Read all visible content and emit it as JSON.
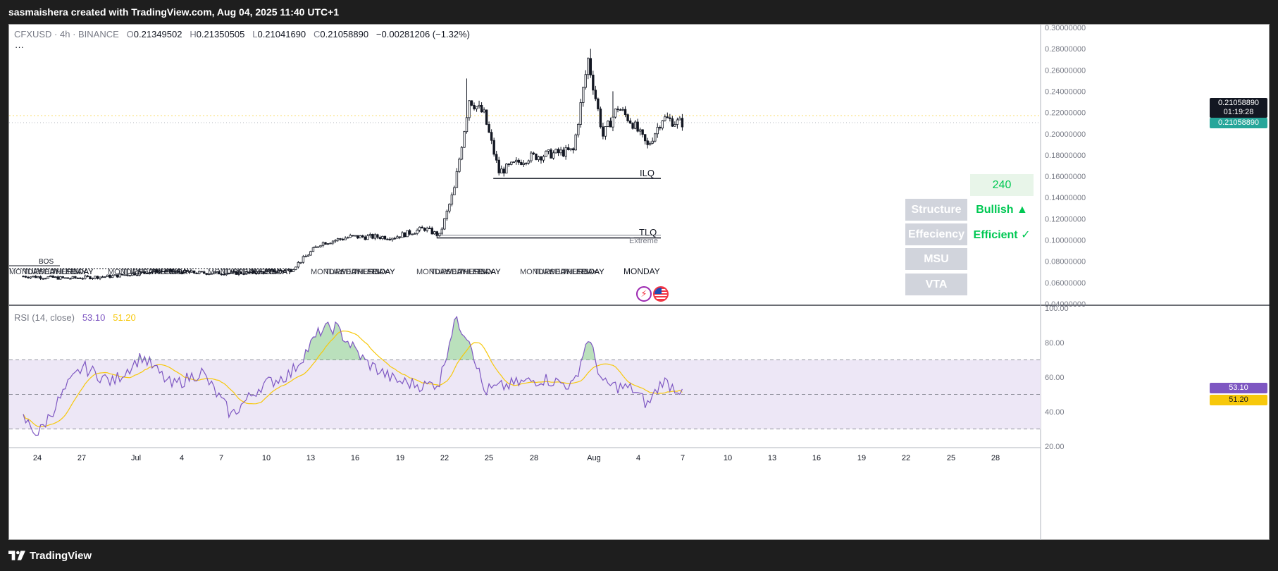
{
  "header": {
    "attribution": "sasmaishera created with TradingView.com, Aug 04, 2025 11:40 UTC+1"
  },
  "legend": {
    "symbol": "CFXUSD · 4h · BINANCE",
    "o_label": "O",
    "o": "0.21349502",
    "h_label": "H",
    "h": "0.21350505",
    "l_label": "L",
    "l": "0.21041690",
    "c_label": "C",
    "c": "0.21058890",
    "change": "−0.00281206 (−1.32%)",
    "more": "···"
  },
  "price_axis": {
    "ticks": [
      "0.30000000",
      "0.28000000",
      "0.26000000",
      "0.24000000",
      "0.22000000",
      "0.20000000",
      "0.18000000",
      "0.16000000",
      "0.14000000",
      "0.12000000",
      "0.10000000",
      "0.08000000",
      "0.06000000",
      "0.04000000"
    ],
    "last_price": "0.21058890",
    "countdown": "01:19:28",
    "indicator_price": "0.21058890"
  },
  "annotations": {
    "ilq": "ILQ",
    "tlq": "TLQ",
    "extreme": "Extreme",
    "bos": "BOS",
    "day_label": "MONDAY"
  },
  "table": {
    "timeframe": "240",
    "rows": [
      {
        "key": "Structure",
        "value": "Bullish ▲"
      },
      {
        "key": "Effeciency",
        "value": "Efficient ✓"
      },
      {
        "key": "MSU",
        "value": ""
      },
      {
        "key": "VTA",
        "value": ""
      }
    ]
  },
  "rsi": {
    "title": "RSI (14, close)",
    "rsi_value": "53.10",
    "ma_value": "51.20",
    "ticks": [
      "100.00",
      "80.00",
      "60.00",
      "40.00",
      "20.00"
    ]
  },
  "time_axis": {
    "ticks": [
      "24",
      "27",
      "Jul",
      "4",
      "7",
      "10",
      "13",
      "16",
      "19",
      "22",
      "25",
      "28",
      "Aug",
      "4",
      "7",
      "10",
      "13",
      "16",
      "19",
      "22",
      "25",
      "28"
    ]
  },
  "footer": {
    "brand": "TradingView"
  },
  "colors": {
    "up": "#ffffff",
    "down": "#131722",
    "rsi_line": "#7e57c2",
    "rsi_ma": "#f7c80b",
    "rsi_band": "#ede7f6",
    "label_price": "#131722",
    "label_indicator": "#26a69a",
    "bullish": "#00c853"
  },
  "chart_data": {
    "type": "candlestick",
    "symbol": "CFXUSD",
    "interval": "4h",
    "price_range": [
      0.04,
      0.3
    ],
    "key_levels": [
      {
        "name": "ILQ",
        "price": 0.158
      },
      {
        "name": "TLQ",
        "price": 0.102
      }
    ],
    "price_path": [
      {
        "date": "06-21",
        "price": 0.066
      },
      {
        "date": "06-24",
        "price": 0.064
      },
      {
        "date": "06-27",
        "price": 0.066
      },
      {
        "date": "06-30",
        "price": 0.071
      },
      {
        "date": "07-03",
        "price": 0.069
      },
      {
        "date": "07-06",
        "price": 0.069
      },
      {
        "date": "07-09",
        "price": 0.072
      },
      {
        "date": "07-11",
        "price": 0.097
      },
      {
        "date": "07-13",
        "price": 0.103
      },
      {
        "date": "07-16",
        "price": 0.103
      },
      {
        "date": "07-18",
        "price": 0.111
      },
      {
        "date": "07-19",
        "price": 0.104
      },
      {
        "date": "07-20",
        "price": 0.148
      },
      {
        "date": "07-21",
        "price": 0.233
      },
      {
        "date": "07-22",
        "price": 0.218
      },
      {
        "date": "07-23",
        "price": 0.164
      },
      {
        "date": "07-25",
        "price": 0.178
      },
      {
        "date": "07-28",
        "price": 0.184
      },
      {
        "date": "07-29",
        "price": 0.27
      },
      {
        "date": "07-30",
        "price": 0.198
      },
      {
        "date": "07-31",
        "price": 0.225
      },
      {
        "date": "08-01",
        "price": 0.21
      },
      {
        "date": "08-02",
        "price": 0.188
      },
      {
        "date": "08-03",
        "price": 0.215
      },
      {
        "date": "08-04",
        "price": 0.2106
      }
    ],
    "rsi_path": [
      {
        "date": "06-21",
        "value": 36
      },
      {
        "date": "06-22",
        "value": 27
      },
      {
        "date": "06-24",
        "value": 55
      },
      {
        "date": "06-25",
        "value": 66
      },
      {
        "date": "06-27",
        "value": 57
      },
      {
        "date": "06-29",
        "value": 72
      },
      {
        "date": "07-01",
        "value": 55
      },
      {
        "date": "07-03",
        "value": 63
      },
      {
        "date": "07-05",
        "value": 38
      },
      {
        "date": "07-07",
        "value": 55
      },
      {
        "date": "07-09",
        "value": 62
      },
      {
        "date": "07-11",
        "value": 87
      },
      {
        "date": "07-12",
        "value": 89
      },
      {
        "date": "07-14",
        "value": 69
      },
      {
        "date": "07-16",
        "value": 58
      },
      {
        "date": "07-18",
        "value": 55
      },
      {
        "date": "07-19",
        "value": 57
      },
      {
        "date": "07-20",
        "value": 93
      },
      {
        "date": "07-21",
        "value": 83
      },
      {
        "date": "07-22",
        "value": 52
      },
      {
        "date": "07-24",
        "value": 56
      },
      {
        "date": "07-26",
        "value": 59
      },
      {
        "date": "07-28",
        "value": 55
      },
      {
        "date": "07-29",
        "value": 83
      },
      {
        "date": "07-30",
        "value": 56
      },
      {
        "date": "08-01",
        "value": 53
      },
      {
        "date": "08-02",
        "value": 44
      },
      {
        "date": "08-03",
        "value": 58
      },
      {
        "date": "08-04",
        "value": 53.1
      }
    ]
  }
}
